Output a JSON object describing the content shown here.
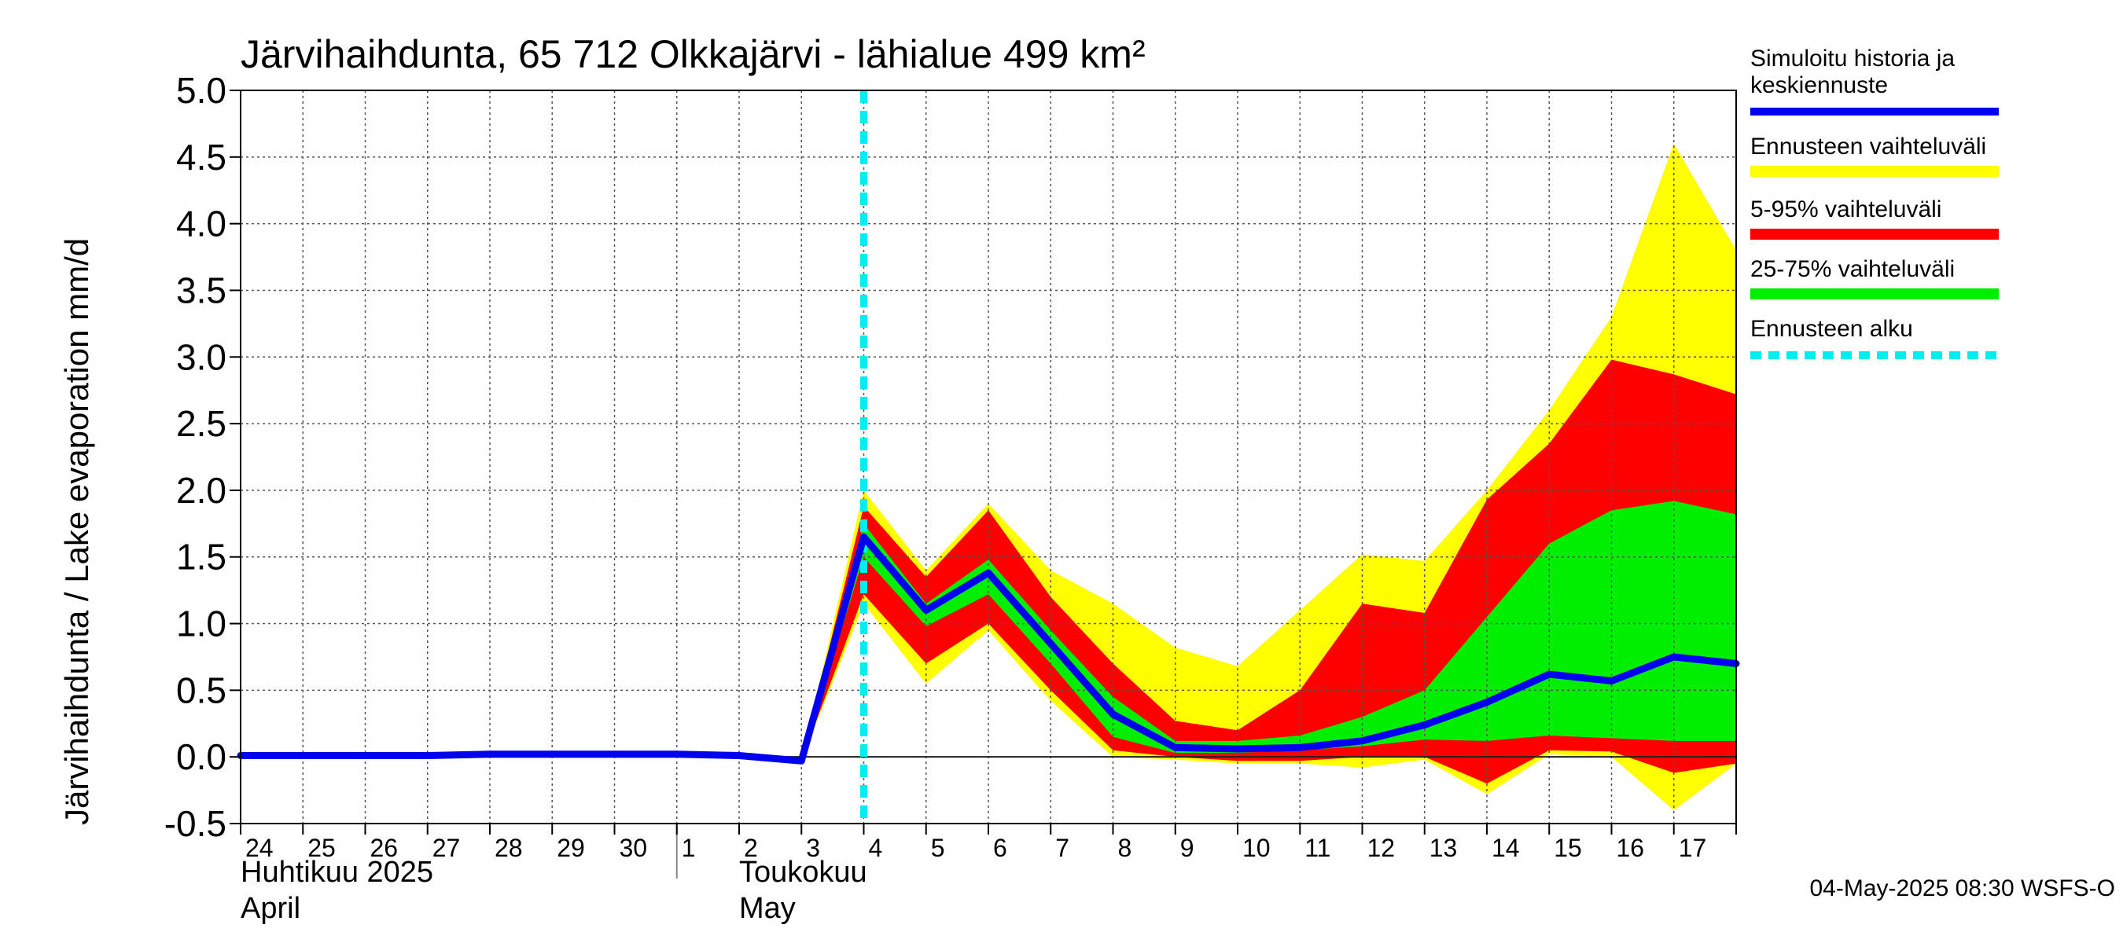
{
  "chart_data": {
    "type": "area",
    "title": "Järvihaihdunta, 65 712 Olkkajärvi - lähialue 499 km²",
    "ylabel": "Järvihaihdunta / Lake evaporation   mm/d",
    "ylim": [
      -0.5,
      5.0
    ],
    "yticks": [
      "-0.5",
      "0.0",
      "0.5",
      "1.0",
      "1.5",
      "2.0",
      "2.5",
      "3.0",
      "3.5",
      "4.0",
      "4.5",
      "5.0"
    ],
    "ytick_values": [
      -0.5,
      0.0,
      0.5,
      1.0,
      1.5,
      2.0,
      2.5,
      3.0,
      3.5,
      4.0,
      4.5,
      5.0
    ],
    "x_range_days": [
      0,
      24
    ],
    "x_tick_labels": [
      "24",
      "25",
      "26",
      "27",
      "28",
      "29",
      "30",
      "1",
      "2",
      "3",
      "4",
      "5",
      "6",
      "7",
      "8",
      "9",
      "10",
      "11",
      "12",
      "13",
      "14",
      "15",
      "16",
      "17"
    ],
    "month_labels": {
      "april_fi": "Huhtikuu  2025",
      "april_en": "April",
      "may_fi": "Toukokuu",
      "may_en": "May"
    },
    "forecast_start_day": 10,
    "forecast_x": [
      9,
      10,
      11,
      12,
      13,
      14,
      15,
      16,
      17,
      18,
      19,
      20,
      21,
      22,
      23,
      24
    ],
    "yellow_upper": [
      -0.03,
      2.0,
      1.4,
      1.9,
      1.4,
      1.15,
      0.82,
      0.68,
      1.1,
      1.52,
      1.47,
      2.0,
      2.6,
      3.3,
      4.6,
      3.8
    ],
    "yellow_lower": [
      -0.03,
      1.15,
      0.55,
      0.95,
      0.42,
      0.0,
      -0.02,
      -0.05,
      -0.05,
      -0.08,
      -0.02,
      -0.28,
      0.02,
      0.0,
      -0.4,
      -0.05
    ],
    "red_upper": [
      -0.03,
      1.88,
      1.35,
      1.85,
      1.2,
      0.7,
      0.27,
      0.2,
      0.5,
      1.15,
      1.08,
      1.93,
      2.35,
      2.98,
      2.87,
      2.72
    ],
    "red_lower": [
      -0.03,
      1.22,
      0.7,
      1.0,
      0.5,
      0.05,
      0.0,
      -0.03,
      -0.03,
      0.0,
      0.0,
      -0.2,
      0.05,
      0.04,
      -0.12,
      -0.05
    ],
    "green_upper": [
      -0.03,
      1.75,
      1.15,
      1.48,
      0.95,
      0.45,
      0.12,
      0.12,
      0.16,
      0.3,
      0.5,
      1.05,
      1.6,
      1.85,
      1.92,
      1.82
    ],
    "green_lower": [
      -0.03,
      1.5,
      0.98,
      1.22,
      0.7,
      0.15,
      0.03,
      0.03,
      0.05,
      0.08,
      0.13,
      0.12,
      0.16,
      0.14,
      0.12,
      0.12
    ],
    "series": [
      {
        "name": "Simuloitu historia ja keskiennuste",
        "x": [
          0,
          1,
          2,
          3,
          4,
          5,
          6,
          7,
          8,
          9,
          10,
          11,
          12,
          13,
          14,
          15,
          16,
          17,
          18,
          19,
          20,
          21,
          22,
          23,
          24
        ],
        "values": [
          0.01,
          0.01,
          0.01,
          0.01,
          0.02,
          0.02,
          0.02,
          0.02,
          0.01,
          -0.03,
          1.65,
          1.1,
          1.38,
          0.85,
          0.32,
          0.07,
          0.06,
          0.07,
          0.12,
          0.24,
          0.41,
          0.62,
          0.57,
          0.75,
          0.7
        ]
      }
    ],
    "legend": [
      {
        "label": "Simuloitu historia ja keskiennuste",
        "color": "#0000ee",
        "style": "line"
      },
      {
        "label": "Ennusteen vaihteluväli",
        "color": "#ffff00",
        "style": "band"
      },
      {
        "label": "5-95% vaihteluväli",
        "color": "#ff0000",
        "style": "band"
      },
      {
        "label": "25-75% vaihteluväli",
        "color": "#00ee00",
        "style": "band"
      },
      {
        "label": "Ennusteen alku",
        "color": "#00eeee",
        "style": "dashed"
      }
    ],
    "colors": {
      "median": "#0000ee",
      "yellow": "#ffff00",
      "red": "#ff0000",
      "green": "#00ee00",
      "forecast_start": "#00eeee"
    },
    "footer": "04-May-2025 08:30 WSFS-O"
  }
}
